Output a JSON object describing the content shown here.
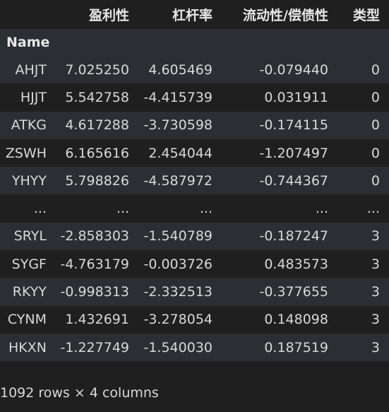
{
  "columns": [
    "",
    "盈利性",
    "杠杆率",
    "流动性/偿债性",
    "类型"
  ],
  "index_name": "Name",
  "rows": [
    {
      "name": "AHJT",
      "values": [
        "7.025250",
        "4.605469",
        "-0.079440",
        "0"
      ]
    },
    {
      "name": "HJJT",
      "values": [
        "5.542758",
        "-4.415739",
        "0.031911",
        "0"
      ]
    },
    {
      "name": "ATKG",
      "values": [
        "4.617288",
        "-3.730598",
        "-0.174115",
        "0"
      ]
    },
    {
      "name": "ZSWH",
      "values": [
        "6.165616",
        "2.454044",
        "-1.207497",
        "0"
      ]
    },
    {
      "name": "YHYY",
      "values": [
        "5.798826",
        "-4.587972",
        "-0.744367",
        "0"
      ]
    },
    {
      "name": "...",
      "values": [
        "...",
        "...",
        "...",
        "..."
      ]
    },
    {
      "name": "SRYL",
      "values": [
        "-2.858303",
        "-1.540789",
        "-0.187247",
        "3"
      ]
    },
    {
      "name": "SYGF",
      "values": [
        "-4.763179",
        "-0.003726",
        "0.483573",
        "3"
      ]
    },
    {
      "name": "RKYY",
      "values": [
        "-0.998313",
        "-2.332513",
        "-0.377655",
        "3"
      ]
    },
    {
      "name": "CYNM",
      "values": [
        "1.432691",
        "-3.278054",
        "0.148098",
        "3"
      ]
    },
    {
      "name": "HKXN",
      "values": [
        "-1.227749",
        "-1.540030",
        "0.187519",
        "3"
      ]
    }
  ],
  "shape_caption": "1092 rows × 4 columns"
}
